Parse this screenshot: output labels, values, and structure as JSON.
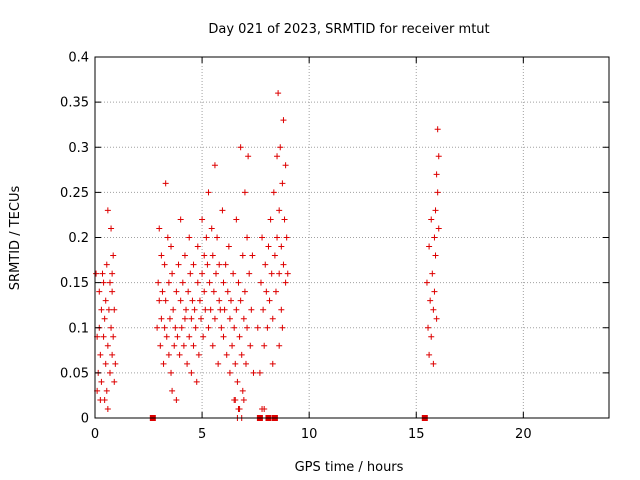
{
  "chart_data": {
    "type": "scatter",
    "title": "Day 021 of 2023, SRMTID for receiver mtut",
    "xlabel": "GPS time / hours",
    "ylabel": "SRMTID / TECUs",
    "xlim": [
      0,
      24
    ],
    "ylim": [
      0,
      0.4
    ],
    "x_ticks": [
      0,
      5,
      10,
      15,
      20
    ],
    "x_tick_labels": [
      "0",
      "5",
      "10",
      "15",
      "20"
    ],
    "y_ticks": [
      0,
      0.05,
      0.1,
      0.15,
      0.2,
      0.25,
      0.3,
      0.35,
      0.4
    ],
    "y_tick_labels": [
      "0",
      "0.05",
      "0.1",
      "0.15",
      "0.2",
      "0.25",
      "0.3",
      "0.35",
      "0.4"
    ],
    "grid": true,
    "series_color": "#dd0000",
    "marker": "plus",
    "zero_markers_x": [
      2.7,
      7.7,
      8.1,
      8.4,
      15.4
    ],
    "points": [
      [
        0.05,
        0.16
      ],
      [
        0.1,
        0.09
      ],
      [
        0.1,
        0.03
      ],
      [
        0.15,
        0.05
      ],
      [
        0.2,
        0.1
      ],
      [
        0.2,
        0.14
      ],
      [
        0.25,
        0.07
      ],
      [
        0.3,
        0.12
      ],
      [
        0.3,
        0.04
      ],
      [
        0.35,
        0.16
      ],
      [
        0.4,
        0.09
      ],
      [
        0.45,
        0.11
      ],
      [
        0.5,
        0.06
      ],
      [
        0.5,
        0.13
      ],
      [
        0.55,
        0.17
      ],
      [
        0.55,
        0.03
      ],
      [
        0.6,
        0.08
      ],
      [
        0.6,
        0.23
      ],
      [
        0.65,
        0.12
      ],
      [
        0.7,
        0.05
      ],
      [
        0.7,
        0.15
      ],
      [
        0.75,
        0.1
      ],
      [
        0.75,
        0.21
      ],
      [
        0.8,
        0.07
      ],
      [
        0.8,
        0.14
      ],
      [
        0.85,
        0.09
      ],
      [
        0.85,
        0.18
      ],
      [
        0.9,
        0.12
      ],
      [
        0.9,
        0.04
      ],
      [
        0.95,
        0.06
      ],
      [
        0.25,
        0.02
      ],
      [
        0.45,
        0.02
      ],
      [
        0.6,
        0.01
      ],
      [
        0.8,
        0.16
      ],
      [
        0.4,
        0.15
      ],
      [
        2.9,
        0.1
      ],
      [
        2.95,
        0.15
      ],
      [
        3.0,
        0.13
      ],
      [
        3.0,
        0.21
      ],
      [
        3.05,
        0.08
      ],
      [
        3.1,
        0.18
      ],
      [
        3.1,
        0.11
      ],
      [
        3.15,
        0.14
      ],
      [
        3.2,
        0.06
      ],
      [
        3.25,
        0.17
      ],
      [
        3.25,
        0.1
      ],
      [
        3.3,
        0.26
      ],
      [
        3.3,
        0.13
      ],
      [
        3.35,
        0.09
      ],
      [
        3.4,
        0.2
      ],
      [
        3.45,
        0.07
      ],
      [
        3.45,
        0.15
      ],
      [
        3.5,
        0.11
      ],
      [
        3.55,
        0.19
      ],
      [
        3.55,
        0.05
      ],
      [
        3.6,
        0.16
      ],
      [
        3.6,
        0.03
      ],
      [
        3.65,
        0.12
      ],
      [
        3.7,
        0.08
      ],
      [
        3.75,
        0.1
      ],
      [
        3.8,
        0.02
      ],
      [
        3.8,
        0.14
      ],
      [
        3.85,
        0.09
      ],
      [
        3.9,
        0.17
      ],
      [
        3.95,
        0.07
      ],
      [
        4.0,
        0.13
      ],
      [
        4.0,
        0.22
      ],
      [
        4.05,
        0.1
      ],
      [
        4.1,
        0.15
      ],
      [
        4.15,
        0.08
      ],
      [
        4.2,
        0.11
      ],
      [
        4.2,
        0.18
      ],
      [
        4.25,
        0.12
      ],
      [
        4.3,
        0.06
      ],
      [
        4.35,
        0.14
      ],
      [
        4.4,
        0.09
      ],
      [
        4.4,
        0.2
      ],
      [
        4.45,
        0.16
      ],
      [
        4.5,
        0.11
      ],
      [
        4.5,
        0.05
      ],
      [
        4.55,
        0.13
      ],
      [
        4.6,
        0.08
      ],
      [
        4.6,
        0.17
      ],
      [
        4.65,
        0.12
      ],
      [
        4.7,
        0.1
      ],
      [
        4.75,
        0.04
      ],
      [
        4.8,
        0.15
      ],
      [
        4.8,
        0.19
      ],
      [
        4.85,
        0.07
      ],
      [
        4.9,
        0.13
      ],
      [
        4.95,
        0.11
      ],
      [
        5.0,
        0.16
      ],
      [
        5.0,
        0.22
      ],
      [
        5.05,
        0.09
      ],
      [
        5.1,
        0.18
      ],
      [
        5.1,
        0.14
      ],
      [
        5.15,
        0.12
      ],
      [
        5.2,
        0.2
      ],
      [
        5.25,
        0.17
      ],
      [
        5.3,
        0.1
      ],
      [
        5.3,
        0.25
      ],
      [
        5.35,
        0.15
      ],
      [
        5.4,
        0.12
      ],
      [
        5.45,
        0.21
      ],
      [
        5.5,
        0.18
      ],
      [
        5.5,
        0.08
      ],
      [
        5.55,
        0.14
      ],
      [
        5.6,
        0.11
      ],
      [
        5.6,
        0.28
      ],
      [
        5.65,
        0.16
      ],
      [
        5.7,
        0.2
      ],
      [
        5.75,
        0.06
      ],
      [
        5.8,
        0.13
      ],
      [
        5.8,
        0.17
      ],
      [
        5.85,
        0.12
      ],
      [
        5.9,
        0.1
      ],
      [
        5.95,
        0.23
      ],
      [
        6.0,
        0.15
      ],
      [
        6.0,
        0.09
      ],
      [
        6.05,
        0.12
      ],
      [
        6.1,
        0.17
      ],
      [
        6.15,
        0.07
      ],
      [
        6.2,
        0.14
      ],
      [
        6.25,
        0.19
      ],
      [
        6.3,
        0.11
      ],
      [
        6.3,
        0.05
      ],
      [
        6.35,
        0.13
      ],
      [
        6.4,
        0.08
      ],
      [
        6.45,
        0.16
      ],
      [
        6.5,
        0.02
      ],
      [
        6.5,
        0.1
      ],
      [
        6.55,
        0.06
      ],
      [
        6.6,
        0.12
      ],
      [
        6.6,
        0.22
      ],
      [
        6.65,
        0.04
      ],
      [
        6.7,
        0.15
      ],
      [
        6.7,
        0.01
      ],
      [
        6.75,
        0.09
      ],
      [
        6.8,
        0.3
      ],
      [
        6.8,
        0.13
      ],
      [
        6.85,
        0.07
      ],
      [
        6.9,
        0.18
      ],
      [
        6.9,
        0.03
      ],
      [
        6.95,
        0.11
      ],
      [
        7.0,
        0.25
      ],
      [
        7.0,
        0.14
      ],
      [
        7.05,
        0.06
      ],
      [
        7.1,
        0.2
      ],
      [
        7.1,
        0.1
      ],
      [
        7.15,
        0.29
      ],
      [
        7.2,
        0.16
      ],
      [
        7.25,
        0.08
      ],
      [
        7.3,
        0.12
      ],
      [
        7.35,
        0.18
      ],
      [
        7.4,
        0.05
      ],
      [
        6.55,
        0.02
      ],
      [
        6.65,
        0.0
      ],
      [
        6.75,
        0.01
      ],
      [
        6.85,
        0.0
      ],
      [
        6.95,
        0.02
      ],
      [
        7.6,
        0.1
      ],
      [
        7.7,
        0.05
      ],
      [
        7.75,
        0.15
      ],
      [
        7.8,
        0.2
      ],
      [
        7.85,
        0.12
      ],
      [
        7.9,
        0.08
      ],
      [
        7.95,
        0.17
      ],
      [
        8.0,
        0.14
      ],
      [
        8.05,
        0.1
      ],
      [
        8.1,
        0.19
      ],
      [
        8.15,
        0.13
      ],
      [
        8.2,
        0.22
      ],
      [
        8.25,
        0.16
      ],
      [
        8.3,
        0.11
      ],
      [
        8.35,
        0.25
      ],
      [
        8.4,
        0.18
      ],
      [
        8.45,
        0.14
      ],
      [
        8.5,
        0.2
      ],
      [
        8.5,
        0.29
      ],
      [
        8.55,
        0.36
      ],
      [
        8.6,
        0.23
      ],
      [
        8.6,
        0.16
      ],
      [
        8.65,
        0.3
      ],
      [
        8.7,
        0.19
      ],
      [
        8.7,
        0.12
      ],
      [
        8.75,
        0.26
      ],
      [
        8.8,
        0.17
      ],
      [
        8.8,
        0.33
      ],
      [
        8.85,
        0.22
      ],
      [
        8.9,
        0.15
      ],
      [
        8.9,
        0.28
      ],
      [
        8.95,
        0.2
      ],
      [
        9.0,
        0.16
      ],
      [
        8.3,
        0.06
      ],
      [
        8.6,
        0.08
      ],
      [
        8.75,
        0.1
      ],
      [
        7.8,
        0.01
      ],
      [
        7.9,
        0.01
      ],
      [
        15.5,
        0.15
      ],
      [
        15.55,
        0.1
      ],
      [
        15.6,
        0.07
      ],
      [
        15.6,
        0.19
      ],
      [
        15.65,
        0.13
      ],
      [
        15.7,
        0.22
      ],
      [
        15.7,
        0.09
      ],
      [
        15.75,
        0.16
      ],
      [
        15.8,
        0.12
      ],
      [
        15.8,
        0.06
      ],
      [
        15.85,
        0.2
      ],
      [
        15.85,
        0.14
      ],
      [
        15.9,
        0.23
      ],
      [
        15.9,
        0.18
      ],
      [
        15.95,
        0.27
      ],
      [
        15.95,
        0.11
      ],
      [
        16.0,
        0.32
      ],
      [
        16.0,
        0.25
      ],
      [
        16.05,
        0.29
      ],
      [
        16.05,
        0.21
      ]
    ]
  }
}
